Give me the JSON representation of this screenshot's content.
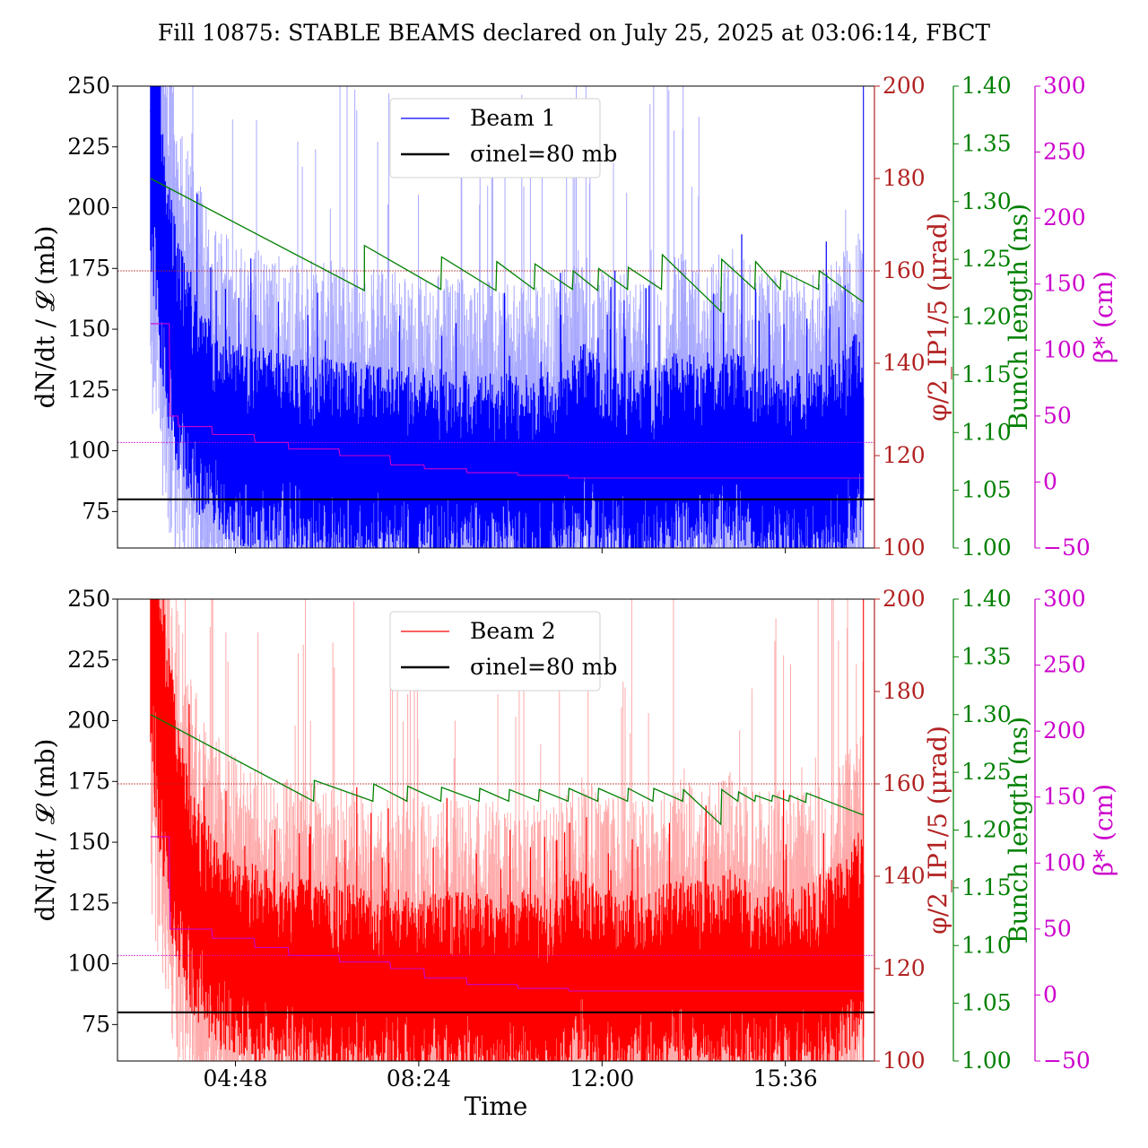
{
  "title": "Fill 10875: STABLE BEAMS declared on July 25, 2025 at 03:06:14, FBCT",
  "colors": {
    "beam1": "#0000ff",
    "beam1_light": "#a9a9ff",
    "beam2": "#ff0000",
    "beam2_light": "#ffaaaa",
    "phi_axis": "#b22222",
    "bunch_axis": "#008000",
    "beta_axis": "#cc00cc",
    "sigma": "#000000"
  },
  "axes": {
    "left_label": "dN/dt / 𝓛 (mb)",
    "phi_label": "φ/2_IP1/5 (μrad)",
    "bunch_label": "Bunch length (ns)",
    "beta_label": "β* (cm)",
    "x_label": "Time",
    "left_ticks": [
      "75",
      "100",
      "125",
      "150",
      "175",
      "200",
      "225",
      "250"
    ],
    "phi_ticks": [
      "100",
      "120",
      "140",
      "160",
      "180",
      "200"
    ],
    "bunch_ticks": [
      "1.00",
      "1.05",
      "1.10",
      "1.15",
      "1.20",
      "1.25",
      "1.30",
      "1.35",
      "1.40"
    ],
    "beta_ticks": [
      "−50",
      "0",
      "50",
      "100",
      "150",
      "200",
      "250",
      "300"
    ],
    "x_ticks": [
      "04:48",
      "08:24",
      "12:00",
      "15:36"
    ]
  },
  "legend": {
    "top_series": "Beam 1",
    "bottom_series": "Beam 2",
    "sigma_label": "σinel=80 mb"
  },
  "chart_data": [
    {
      "type": "line",
      "panel": "top",
      "x_unit": "time (HH:MM, July 25, 2025)",
      "x_range": [
        "02:29",
        "17:21"
      ],
      "ylim": [
        60,
        250
      ],
      "phi_ylim": [
        100,
        200
      ],
      "bunch_ylim": [
        1.0,
        1.4
      ],
      "beta_ylim": [
        -50,
        300
      ],
      "series": [
        {
          "name": "Beam 1",
          "axis": "left",
          "x": [
            "03:08",
            "03:15",
            "03:25",
            "03:40",
            "04:00",
            "04:30",
            "05:00",
            "06:00",
            "07:00",
            "08:00",
            "09:00",
            "10:00",
            "11:00",
            "11:40",
            "12:00",
            "13:00",
            "13:30",
            "14:00",
            "14:30",
            "15:00",
            "16:00",
            "16:40",
            "17:08"
          ],
          "y": [
            240,
            220,
            175,
            145,
            125,
            110,
            104,
            100,
            98,
            96,
            95,
            94,
            94,
            105,
            96,
            95,
            102,
            98,
            105,
            97,
            95,
            100,
            112
          ]
        },
        {
          "axis": "left",
          "y_constant": 80
        },
        {
          "axis": "phi",
          "y_constant": 160
        },
        {
          "axis": "bunch_length",
          "x": [
            "03:08",
            "07:20",
            "07:20",
            "08:50",
            "08:51",
            "09:55",
            "09:56",
            "10:40",
            "10:41",
            "11:25",
            "11:26",
            "11:55",
            "11:56",
            "12:30",
            "12:31",
            "13:10",
            "13:11",
            "14:20",
            "14:21",
            "15:00",
            "15:01",
            "15:30",
            "15:31",
            "16:15",
            "16:16",
            "17:08"
          ],
          "y": [
            1.32,
            1.223,
            1.262,
            1.224,
            1.252,
            1.223,
            1.248,
            1.224,
            1.246,
            1.224,
            1.24,
            1.223,
            1.242,
            1.224,
            1.243,
            1.224,
            1.254,
            1.205,
            1.25,
            1.224,
            1.248,
            1.224,
            1.24,
            1.224,
            1.24,
            1.213
          ]
        },
        {
          "axis": "beta_star",
          "x": [
            "03:08",
            "03:30",
            "03:31",
            "03:40",
            "03:41",
            "04:20",
            "04:21",
            "05:10",
            "05:11",
            "05:50",
            "05:51",
            "06:50",
            "06:51",
            "07:50",
            "07:51",
            "08:30",
            "08:31",
            "09:20",
            "09:21",
            "10:20",
            "10:21",
            "11:20",
            "11:21",
            "17:08"
          ],
          "y": [
            120,
            120,
            50,
            50,
            42,
            42,
            36,
            36,
            30,
            30,
            25,
            25,
            20,
            20,
            13,
            13,
            10,
            10,
            7,
            7,
            5,
            5,
            3,
            3
          ]
        },
        {
          "axis": "beta_star",
          "y_constant": 30
        }
      ]
    },
    {
      "type": "line",
      "panel": "bottom",
      "x_unit": "time (HH:MM, July 25, 2025)",
      "x_range": [
        "02:29",
        "17:21"
      ],
      "ylim": [
        60,
        250
      ],
      "phi_ylim": [
        100,
        200
      ],
      "bunch_ylim": [
        1.0,
        1.4
      ],
      "beta_ylim": [
        -50,
        300
      ],
      "series": [
        {
          "name": "Beam 2",
          "axis": "left",
          "x": [
            "03:08",
            "03:15",
            "03:25",
            "03:40",
            "04:00",
            "04:30",
            "05:00",
            "06:00",
            "07:00",
            "08:00",
            "09:00",
            "10:00",
            "11:00",
            "11:40",
            "12:00",
            "13:00",
            "13:30",
            "14:00",
            "14:30",
            "15:00",
            "16:00",
            "16:40",
            "17:08"
          ],
          "y": [
            240,
            230,
            190,
            150,
            125,
            110,
            102,
            97,
            95,
            93,
            92,
            91,
            91,
            100,
            93,
            92,
            98,
            95,
            100,
            94,
            95,
            102,
            115
          ]
        },
        {
          "axis": "left",
          "y_constant": 80
        },
        {
          "axis": "phi",
          "y_constant": 160
        },
        {
          "axis": "bunch_length",
          "x": [
            "03:08",
            "06:20",
            "06:21",
            "07:30",
            "07:31",
            "08:10",
            "08:11",
            "08:50",
            "08:51",
            "09:35",
            "09:36",
            "10:10",
            "10:11",
            "10:45",
            "10:46",
            "11:20",
            "11:21",
            "11:55",
            "11:56",
            "12:30",
            "12:31",
            "13:00",
            "13:01",
            "13:35",
            "13:36",
            "14:20",
            "14:21",
            "14:40",
            "14:41",
            "15:00",
            "15:01",
            "15:20",
            "15:21",
            "15:40",
            "15:41",
            "16:00",
            "16:01",
            "17:08"
          ],
          "y": [
            1.3,
            1.225,
            1.243,
            1.225,
            1.24,
            1.225,
            1.238,
            1.225,
            1.237,
            1.225,
            1.236,
            1.225,
            1.235,
            1.225,
            1.235,
            1.225,
            1.236,
            1.225,
            1.236,
            1.225,
            1.236,
            1.225,
            1.236,
            1.225,
            1.235,
            1.205,
            1.235,
            1.225,
            1.233,
            1.225,
            1.23,
            1.225,
            1.23,
            1.225,
            1.23,
            1.224,
            1.232,
            1.213
          ]
        },
        {
          "axis": "beta_star",
          "x": [
            "03:08",
            "03:30",
            "03:31",
            "04:20",
            "04:21",
            "05:10",
            "05:11",
            "05:50",
            "05:51",
            "06:50",
            "06:51",
            "07:50",
            "07:51",
            "08:30",
            "08:31",
            "09:20",
            "09:21",
            "10:20",
            "10:21",
            "11:20",
            "11:21",
            "17:08"
          ],
          "y": [
            120,
            120,
            50,
            50,
            43,
            43,
            36,
            36,
            30,
            30,
            25,
            25,
            20,
            20,
            13,
            13,
            8,
            8,
            5,
            5,
            3,
            3
          ]
        },
        {
          "axis": "beta_star",
          "y_constant": 30
        }
      ]
    }
  ]
}
